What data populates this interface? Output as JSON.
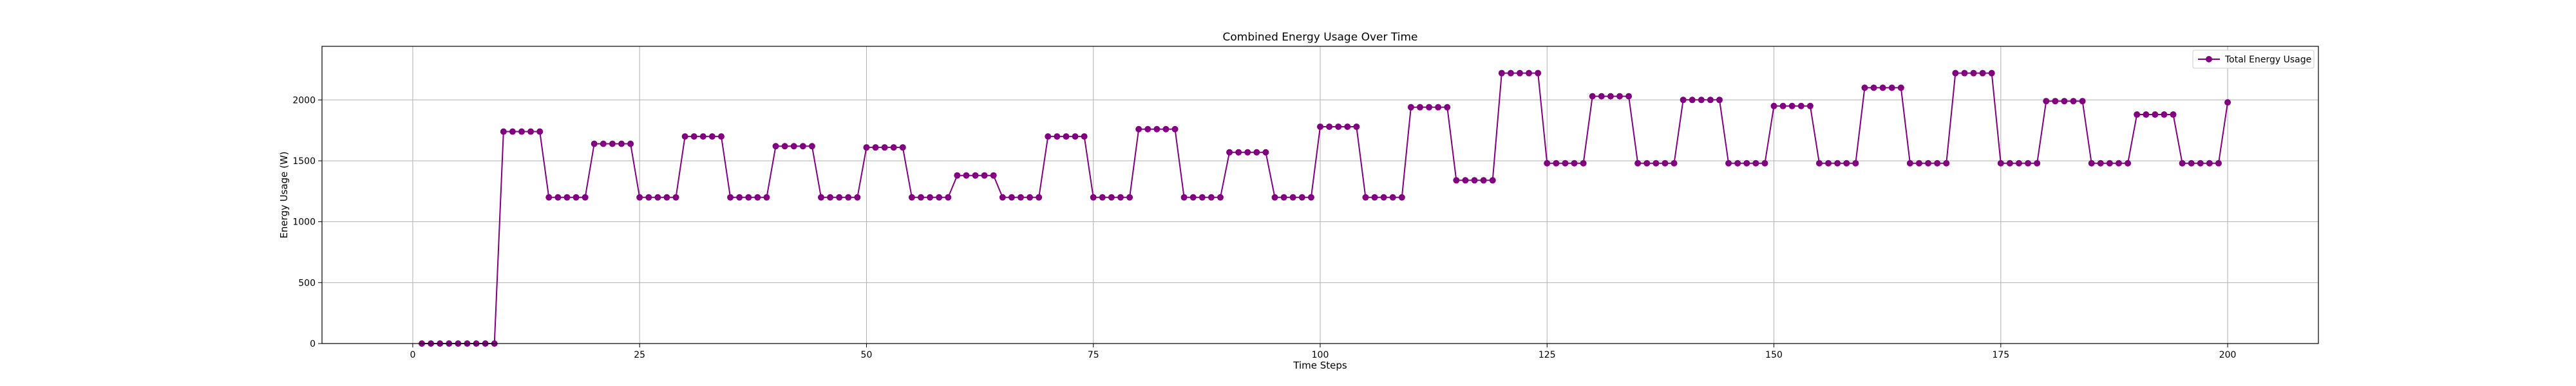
{
  "chart_data": {
    "type": "line",
    "title": "Combined Energy Usage Over Time",
    "xlabel": "Time Steps",
    "ylabel": "Energy Usage (W)",
    "xlim": [
      -10,
      210
    ],
    "ylim": [
      0,
      2440
    ],
    "xticks": [
      0,
      25,
      50,
      75,
      100,
      125,
      150,
      175,
      200
    ],
    "yticks": [
      0,
      500,
      1000,
      1500,
      2000
    ],
    "grid": true,
    "legend": "top-right",
    "colors": {
      "line": "#800080",
      "marker": "#800080",
      "grid": "#b0b0b0",
      "axis": "#000000"
    },
    "series": [
      {
        "name": "Total Energy Usage",
        "x_start": 1,
        "x_step": 1,
        "values": [
          0,
          0,
          0,
          0,
          0,
          0,
          0,
          0,
          0,
          1740,
          1740,
          1740,
          1740,
          1740,
          1200,
          1200,
          1200,
          1200,
          1200,
          1640,
          1640,
          1640,
          1640,
          1640,
          1200,
          1200,
          1200,
          1200,
          1200,
          1700,
          1700,
          1700,
          1700,
          1700,
          1200,
          1200,
          1200,
          1200,
          1200,
          1620,
          1620,
          1620,
          1620,
          1620,
          1200,
          1200,
          1200,
          1200,
          1200,
          1610,
          1610,
          1610,
          1610,
          1610,
          1200,
          1200,
          1200,
          1200,
          1200,
          1380,
          1380,
          1380,
          1380,
          1380,
          1200,
          1200,
          1200,
          1200,
          1200,
          1700,
          1700,
          1700,
          1700,
          1700,
          1200,
          1200,
          1200,
          1200,
          1200,
          1760,
          1760,
          1760,
          1760,
          1760,
          1200,
          1200,
          1200,
          1200,
          1200,
          1570,
          1570,
          1570,
          1570,
          1570,
          1200,
          1200,
          1200,
          1200,
          1200,
          1780,
          1780,
          1780,
          1780,
          1780,
          1200,
          1200,
          1200,
          1200,
          1200,
          1940,
          1940,
          1940,
          1940,
          1940,
          1340,
          1340,
          1340,
          1340,
          1340,
          2220,
          2220,
          2220,
          2220,
          2220,
          1480,
          1480,
          1480,
          1480,
          1480,
          2030,
          2030,
          2030,
          2030,
          2030,
          1480,
          1480,
          1480,
          1480,
          1480,
          2000,
          2000,
          2000,
          2000,
          2000,
          1480,
          1480,
          1480,
          1480,
          1480,
          1950,
          1950,
          1950,
          1950,
          1950,
          1480,
          1480,
          1480,
          1480,
          1480,
          2100,
          2100,
          2100,
          2100,
          2100,
          1480,
          1480,
          1480,
          1480,
          1480,
          2220,
          2220,
          2220,
          2220,
          2220,
          1480,
          1480,
          1480,
          1480,
          1480,
          1990,
          1990,
          1990,
          1990,
          1990,
          1480,
          1480,
          1480,
          1480,
          1480,
          1880,
          1880,
          1880,
          1880,
          1880,
          1480,
          1480,
          1480,
          1480,
          1480,
          1980
        ]
      }
    ]
  }
}
